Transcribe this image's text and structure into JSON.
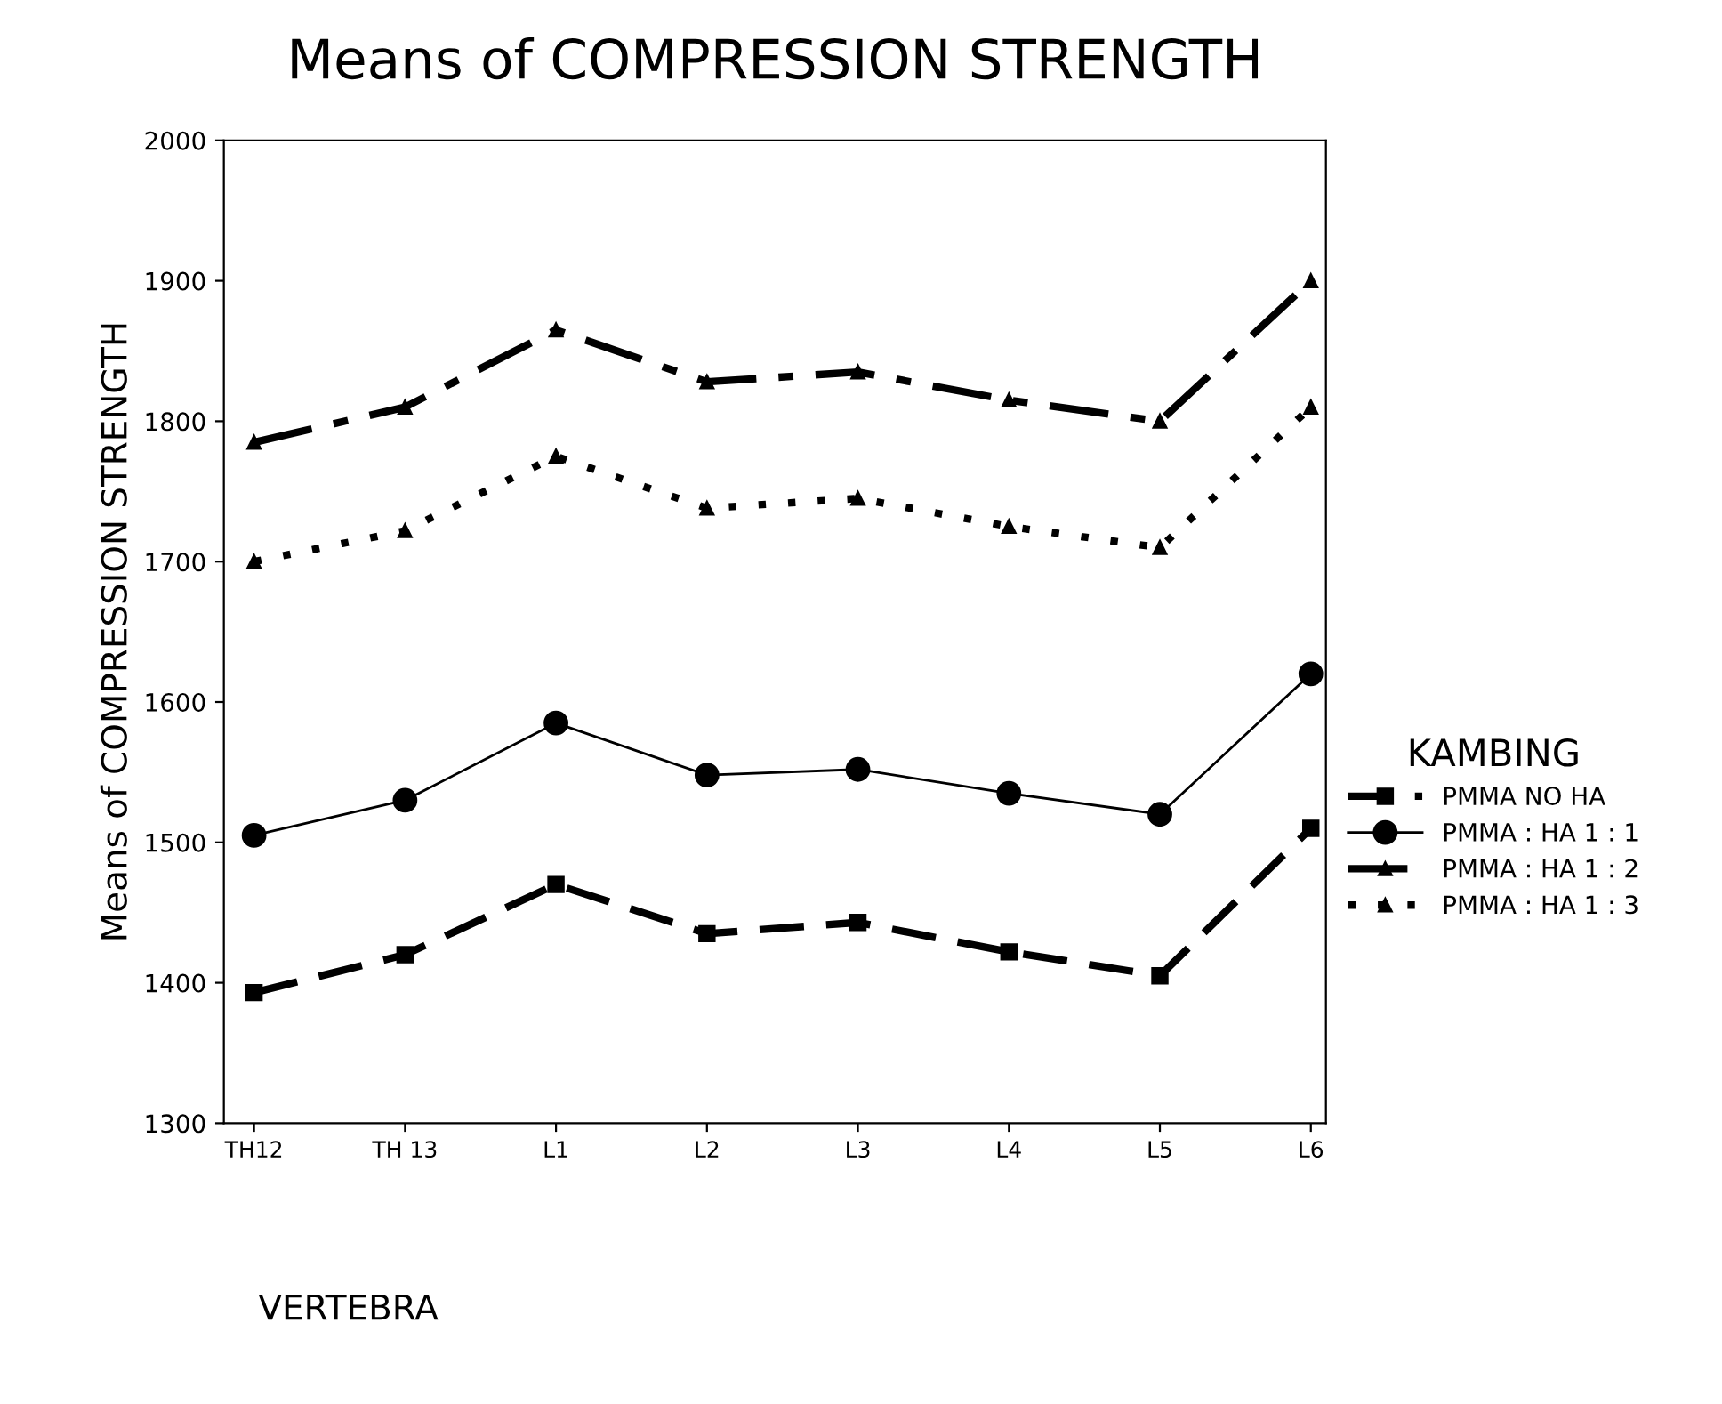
{
  "chart_data": {
    "type": "line",
    "title": "Means of COMPRESSION STRENGTH",
    "xlabel": "VERTEBRA",
    "ylabel": "Means of COMPRESSION STRENGTH",
    "legend_title": "KAMBING",
    "categories": [
      "TH12",
      "TH 13",
      "L1",
      "L2",
      "L3",
      "L4",
      "L5",
      "L6"
    ],
    "series": [
      {
        "name": "PMMA NO HA",
        "color": "#000000",
        "line_style": "dashed",
        "marker": "square",
        "values": [
          1393,
          1420,
          1470,
          1435,
          1443,
          1422,
          1405,
          1510
        ]
      },
      {
        "name": "PMMA : HA 1 : 1",
        "color": "#000000",
        "line_style": "solid",
        "marker": "circle",
        "values": [
          1505,
          1530,
          1585,
          1548,
          1552,
          1535,
          1520,
          1620
        ]
      },
      {
        "name": "PMMA : HA 1 : 2",
        "color": "#000000",
        "line_style": "dashdot",
        "marker": "triangle",
        "values": [
          1785,
          1810,
          1865,
          1828,
          1835,
          1815,
          1800,
          1900
        ]
      },
      {
        "name": "PMMA : HA 1 : 3",
        "color": "#000000",
        "line_style": "dotted",
        "marker": "triangle",
        "values": [
          1700,
          1722,
          1775,
          1738,
          1745,
          1725,
          1710,
          1810
        ]
      }
    ],
    "ylim": [
      1300,
      2000
    ],
    "yticks": [
      1300,
      1400,
      1500,
      1600,
      1700,
      1800,
      1900,
      2000
    ],
    "grid": false,
    "legend": "right"
  }
}
